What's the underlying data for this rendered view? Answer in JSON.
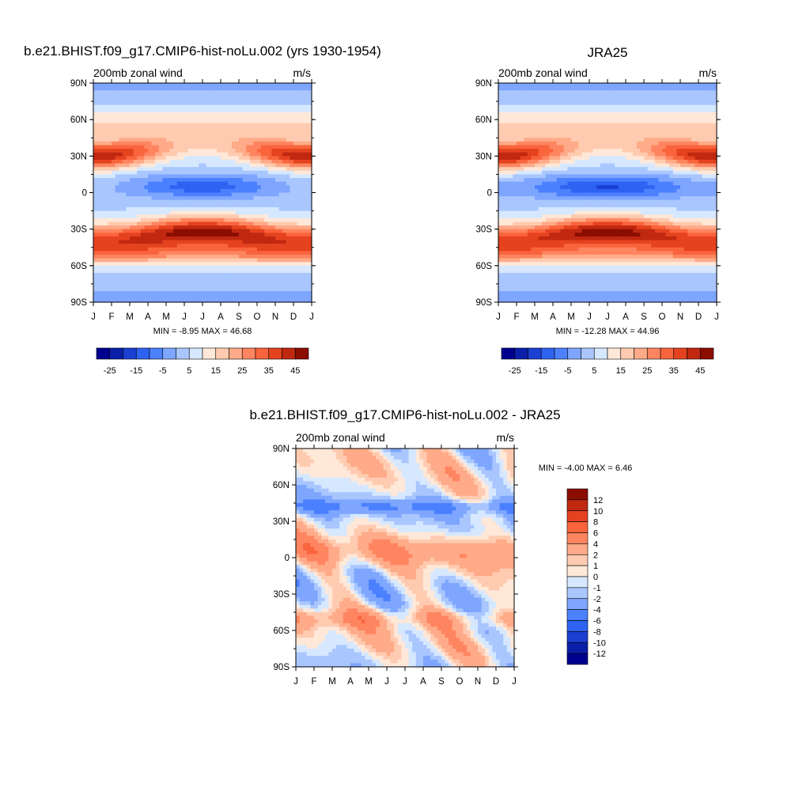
{
  "palette": [
    "#00008f",
    "#0a1fa8",
    "#1a3fd1",
    "#2e62f0",
    "#4b80ff",
    "#7ea6ff",
    "#a9c6ff",
    "#d6e8ff",
    "#ffe8d8",
    "#ffcbb0",
    "#ffaa88",
    "#ff8560",
    "#f9643c",
    "#e5421f",
    "#c02810",
    "#8a0d00"
  ],
  "chart_data": [
    {
      "type": "heatmap",
      "title": "b.e21.BHIST.f09_g17.CMIP6-hist-noLu.002 (yrs 1930-1954)",
      "left_label": "200mb zonal wind",
      "right_label": "m/s",
      "x": [
        "J",
        "F",
        "M",
        "A",
        "M",
        "J",
        "J",
        "A",
        "S",
        "O",
        "N",
        "D",
        "J"
      ],
      "y_ticks": [
        "90N",
        "60N",
        "30N",
        "0",
        "30S",
        "60S",
        "90S"
      ],
      "stats": "MIN =  -8.95 MAX =  46.68",
      "colorbar_labels": [
        "-25",
        "-15",
        "-5",
        "5",
        "15",
        "25",
        "35",
        "45"
      ],
      "levels": [
        -35,
        -30,
        -25,
        -20,
        -15,
        -10,
        -5,
        0,
        5,
        10,
        15,
        20,
        25,
        30,
        35,
        40,
        45
      ],
      "field": "model"
    },
    {
      "type": "heatmap",
      "title": "JRA25",
      "left_label": "200mb zonal wind",
      "right_label": "m/s",
      "x": [
        "J",
        "F",
        "M",
        "A",
        "M",
        "J",
        "J",
        "A",
        "S",
        "O",
        "N",
        "D",
        "J"
      ],
      "y_ticks": [
        "90N",
        "60N",
        "30N",
        "0",
        "30S",
        "60S",
        "90S"
      ],
      "stats": "MIN = -12.28 MAX =  44.96",
      "colorbar_labels": [
        "-25",
        "-15",
        "-5",
        "5",
        "15",
        "25",
        "35",
        "45"
      ],
      "levels": [
        -35,
        -30,
        -25,
        -20,
        -15,
        -10,
        -5,
        0,
        5,
        10,
        15,
        20,
        25,
        30,
        35,
        40,
        45
      ],
      "field": "obs"
    },
    {
      "type": "heatmap",
      "title": "b.e21.BHIST.f09_g17.CMIP6-hist-noLu.002 - JRA25",
      "left_label": "200mb zonal wind",
      "right_label": "m/s",
      "x": [
        "J",
        "F",
        "M",
        "A",
        "M",
        "J",
        "J",
        "A",
        "S",
        "O",
        "N",
        "D",
        "J"
      ],
      "y_ticks": [
        "90N",
        "60N",
        "30N",
        "0",
        "30S",
        "60S",
        "90S"
      ],
      "stats": "MIN =  -4.00 MAX =   6.46",
      "colorbar_labels": [
        "12",
        "10",
        "8",
        "6",
        "4",
        "2",
        "1",
        "0",
        "-1",
        "-2",
        "-4",
        "-6",
        "-8",
        "-10",
        "-12"
      ],
      "levels": [
        -14,
        -12,
        -10,
        -8,
        -6,
        -4,
        -2,
        -1,
        0,
        1,
        2,
        4,
        6,
        8,
        10,
        12,
        14
      ],
      "field": "diff"
    }
  ]
}
